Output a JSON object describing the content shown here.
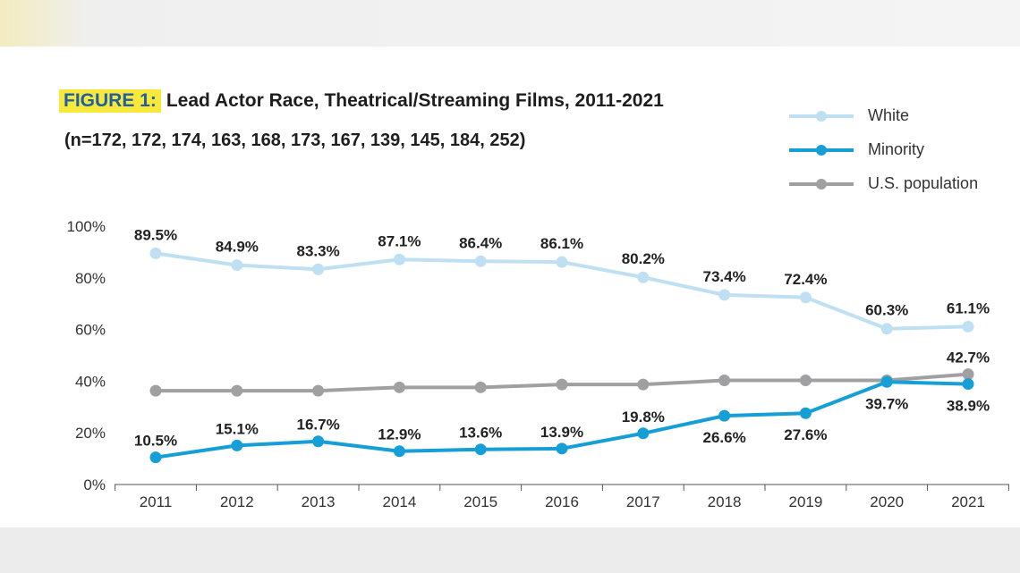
{
  "chart_data": {
    "type": "line",
    "title_prefix": "FIGURE 1:",
    "title": "Lead Actor Race, Theatrical/Streaming Films, 2011-2021",
    "subtitle": "(n=172, 172, 174, 163, 168, 173, 167, 139, 145, 184, 252)",
    "categories": [
      "2011",
      "2012",
      "2013",
      "2014",
      "2015",
      "2016",
      "2017",
      "2018",
      "2019",
      "2020",
      "2021"
    ],
    "y_ticks": [
      "0%",
      "20%",
      "40%",
      "60%",
      "80%",
      "100%"
    ],
    "ylim": [
      0,
      100
    ],
    "grid": false,
    "legend_position": "top-right",
    "series": [
      {
        "name": "White",
        "color": "#bfe0f2",
        "values": [
          89.5,
          84.9,
          83.3,
          87.1,
          86.4,
          86.1,
          80.2,
          73.4,
          72.4,
          60.3,
          61.1
        ],
        "labels": [
          "89.5%",
          "84.9%",
          "83.3%",
          "87.1%",
          "86.4%",
          "86.1%",
          "80.2%",
          "73.4%",
          "72.4%",
          "60.3%",
          "61.1%"
        ]
      },
      {
        "name": "Minority",
        "color": "#159fd6",
        "values": [
          10.5,
          15.1,
          16.7,
          12.9,
          13.6,
          13.9,
          19.8,
          26.6,
          27.6,
          39.7,
          38.9
        ],
        "labels": [
          "10.5%",
          "15.1%",
          "16.7%",
          "12.9%",
          "13.6%",
          "13.9%",
          "19.8%",
          "26.6%",
          "27.6%",
          "39.7%",
          "38.9%"
        ]
      },
      {
        "name": "U.S. population",
        "color": "#a0a0a3",
        "values": [
          36.3,
          36.3,
          36.3,
          37.6,
          37.6,
          38.7,
          38.7,
          40.3,
          40.3,
          40.3,
          42.7
        ],
        "labels": [
          "",
          "",
          "",
          "",
          "",
          "",
          "",
          "",
          "",
          "",
          "42.7%"
        ]
      }
    ]
  }
}
